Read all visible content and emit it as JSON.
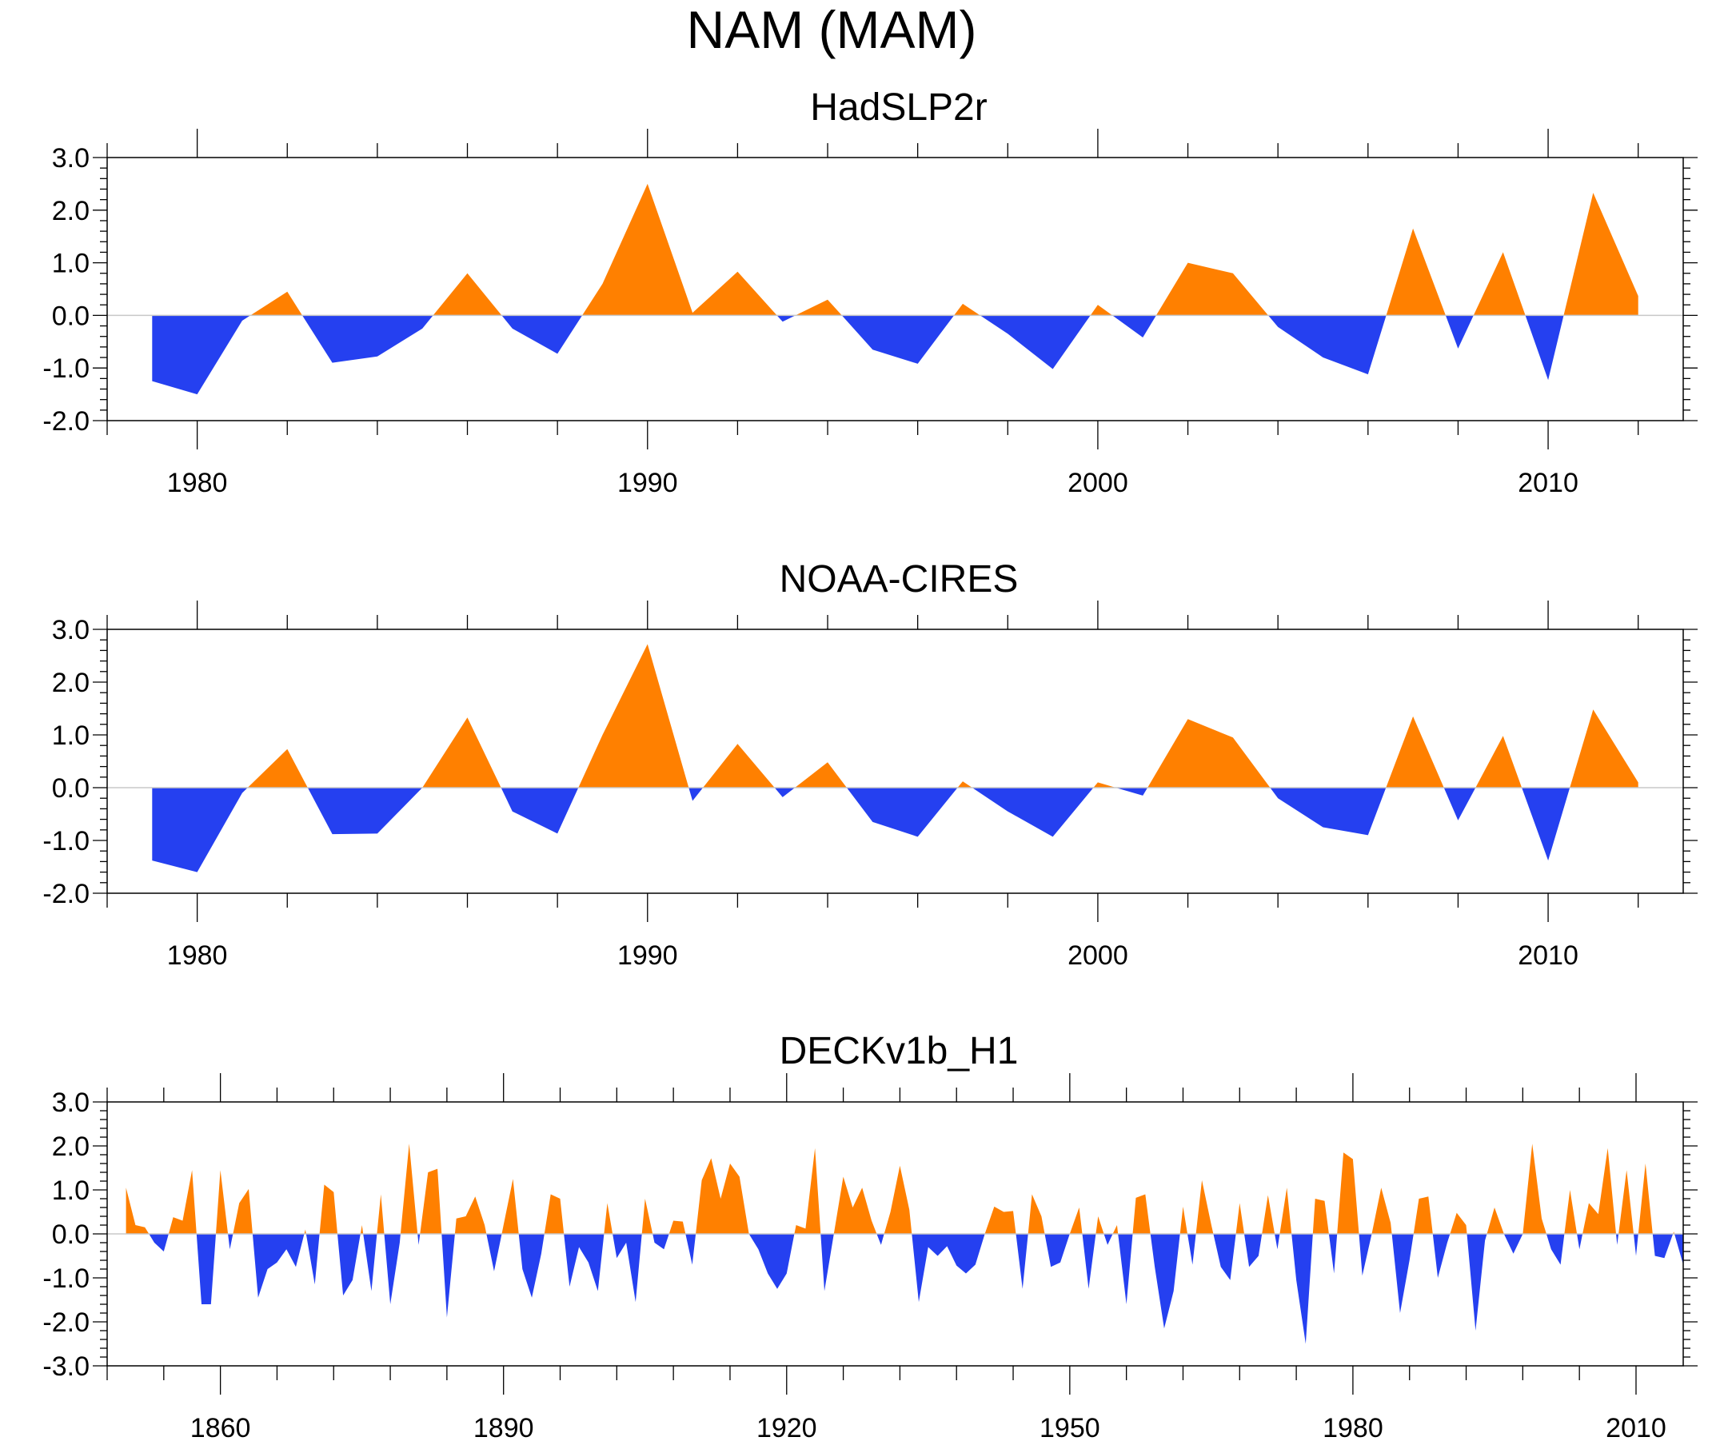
{
  "title": "NAM (MAM)",
  "colors": {
    "positive": "#FF8000",
    "negative": "#2540F0",
    "axis": "#000000",
    "zero_line": "#C8C8C8"
  },
  "chart_data": [
    {
      "type": "area",
      "title": "HadSLP2r",
      "xlim": [
        1978,
        2013
      ],
      "ylim": [
        -2.0,
        3.0
      ],
      "xticks": [
        1980,
        1990,
        2000,
        2010
      ],
      "yticks": [
        -2.0,
        -1.0,
        0.0,
        1.0,
        2.0,
        3.0
      ],
      "ytick_labels": [
        "-2.0",
        "-1.0",
        "0.0",
        "1.0",
        "2.0",
        "3.0"
      ],
      "x": [
        1979,
        1980,
        1981,
        1982,
        1983,
        1984,
        1985,
        1986,
        1987,
        1988,
        1989,
        1990,
        1991,
        1992,
        1993,
        1994,
        1995,
        1996,
        1997,
        1998,
        1999,
        2000,
        2001,
        2002,
        2003,
        2004,
        2005,
        2006,
        2007,
        2008,
        2009,
        2010,
        2011,
        2012
      ],
      "values": [
        -1.25,
        -1.5,
        -0.1,
        0.45,
        -0.9,
        -0.78,
        -0.25,
        0.8,
        -0.25,
        -0.73,
        0.6,
        2.5,
        0.05,
        0.83,
        -0.12,
        0.3,
        -0.65,
        -0.92,
        0.22,
        -0.35,
        -1.02,
        0.2,
        -0.42,
        1.0,
        0.8,
        -0.22,
        -0.8,
        -1.12,
        1.65,
        -0.63,
        1.2,
        -1.23,
        2.33,
        0.37
      ]
    },
    {
      "type": "area",
      "title": "NOAA-CIRES",
      "xlim": [
        1978,
        2013
      ],
      "ylim": [
        -2.0,
        3.0
      ],
      "xticks": [
        1980,
        1990,
        2000,
        2010
      ],
      "yticks": [
        -2.0,
        -1.0,
        0.0,
        1.0,
        2.0,
        3.0
      ],
      "ytick_labels": [
        "-2.0",
        "-1.0",
        "0.0",
        "1.0",
        "2.0",
        "3.0"
      ],
      "x": [
        1979,
        1980,
        1981,
        1982,
        1983,
        1984,
        1985,
        1986,
        1987,
        1988,
        1989,
        1990,
        1991,
        1992,
        1993,
        1994,
        1995,
        1996,
        1997,
        1998,
        1999,
        2000,
        2001,
        2002,
        2003,
        2004,
        2005,
        2006,
        2007,
        2008,
        2009,
        2010,
        2011,
        2012
      ],
      "values": [
        -1.38,
        -1.6,
        -0.1,
        0.73,
        -0.88,
        -0.87,
        0.0,
        1.33,
        -0.45,
        -0.87,
        1.0,
        2.72,
        -0.25,
        0.83,
        -0.18,
        0.48,
        -0.65,
        -0.93,
        0.12,
        -0.45,
        -0.93,
        0.1,
        -0.15,
        1.3,
        0.95,
        -0.2,
        -0.75,
        -0.9,
        1.35,
        -0.62,
        0.98,
        -1.38,
        1.48,
        0.1
      ]
    },
    {
      "type": "area",
      "title": "DECKv1b_H1",
      "xlim": [
        1848,
        2015
      ],
      "ylim": [
        -3.0,
        3.0
      ],
      "xticks": [
        1860,
        1890,
        1920,
        1950,
        1980,
        2010
      ],
      "yticks": [
        -3.0,
        -2.0,
        -1.0,
        0.0,
        1.0,
        2.0,
        3.0
      ],
      "ytick_labels": [
        "-3.0",
        "-2.0",
        "-1.0",
        "0.0",
        "1.0",
        "2.0",
        "3.0"
      ],
      "x_start": 1850,
      "values": [
        1.05,
        0.2,
        0.15,
        -0.2,
        -0.4,
        0.38,
        0.3,
        1.45,
        -1.6,
        -1.6,
        1.45,
        -0.35,
        0.7,
        1.02,
        -1.45,
        -0.8,
        -0.65,
        -0.35,
        -0.75,
        0.1,
        -1.15,
        1.12,
        0.95,
        -1.4,
        -1.05,
        0.2,
        -1.3,
        0.9,
        -1.6,
        -0.2,
        2.05,
        -0.25,
        1.4,
        1.48,
        -1.9,
        0.35,
        0.4,
        0.85,
        0.2,
        -0.85,
        0.2,
        1.25,
        -0.8,
        -1.45,
        -0.45,
        0.9,
        0.8,
        -1.2,
        -0.3,
        -0.65,
        -1.3,
        0.7,
        -0.55,
        -0.2,
        -1.55,
        0.8,
        -0.2,
        -0.35,
        0.3,
        0.28,
        -0.7,
        1.22,
        1.72,
        0.8,
        1.6,
        1.3,
        0.0,
        -0.35,
        -0.9,
        -1.25,
        -0.9,
        0.2,
        0.12,
        1.95,
        -1.3,
        0.0,
        1.3,
        0.6,
        1.05,
        0.3,
        -0.25,
        0.5,
        1.55,
        0.55,
        -1.55,
        -0.3,
        -0.5,
        -0.28,
        -0.72,
        -0.9,
        -0.7,
        0.0,
        0.62,
        0.5,
        0.52,
        -1.25,
        0.9,
        0.4,
        -0.75,
        -0.65,
        0.0,
        0.6,
        -1.25,
        0.4,
        -0.25,
        0.2,
        -1.6,
        0.82,
        0.9,
        -0.75,
        -2.15,
        -1.3,
        0.62,
        -0.7,
        1.22,
        0.2,
        -0.75,
        -1.05,
        0.7,
        -0.75,
        -0.5,
        0.88,
        -0.35,
        1.05,
        -1.05,
        -2.5,
        0.8,
        0.75,
        -0.9,
        1.85,
        1.7,
        -0.95,
        0.0,
        1.05,
        0.25,
        -1.8,
        -0.6,
        0.8,
        0.85,
        -1.0,
        -0.2,
        0.48,
        0.2,
        -2.2,
        -0.15,
        0.6,
        0.0,
        -0.45,
        0.0,
        2.05,
        0.35,
        -0.35,
        -0.7,
        1.0,
        -0.35,
        0.7,
        0.45,
        1.95,
        -0.25,
        1.45,
        -0.5,
        1.6,
        -0.5,
        -0.55,
        0.05,
        -0.7
      ]
    }
  ]
}
